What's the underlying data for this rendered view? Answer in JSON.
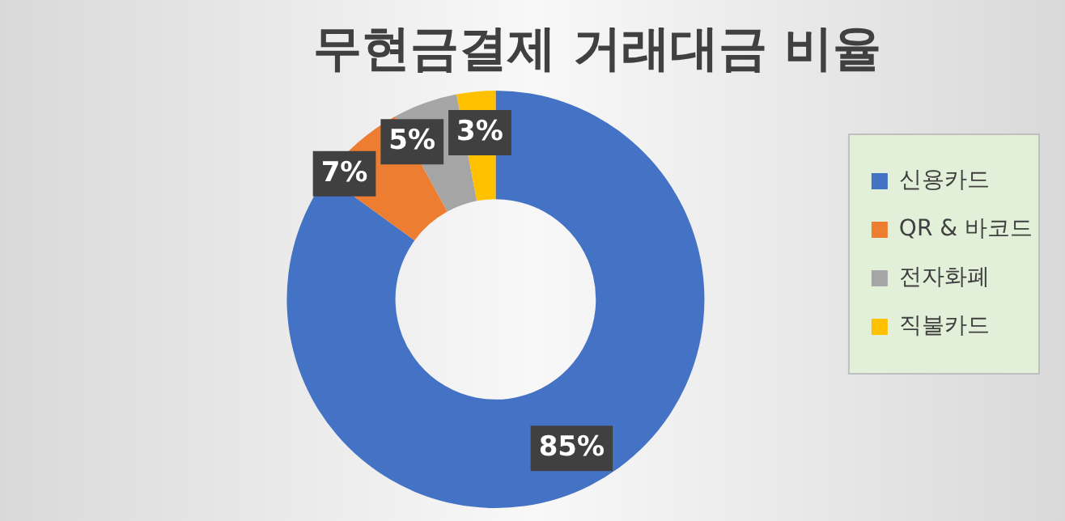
{
  "chart_data": {
    "type": "donut",
    "title": "무현금결제 거래대금 비율",
    "categories": [
      "신용카드",
      "QR & 바코드",
      "전자화폐",
      "직불카드"
    ],
    "values": [
      85,
      7,
      5,
      3
    ],
    "colors": [
      "#4472c4",
      "#ed7d31",
      "#a5a5a5",
      "#ffc000"
    ],
    "value_labels": [
      "85%",
      "7%",
      "5%",
      "3%"
    ],
    "legend": "right"
  }
}
